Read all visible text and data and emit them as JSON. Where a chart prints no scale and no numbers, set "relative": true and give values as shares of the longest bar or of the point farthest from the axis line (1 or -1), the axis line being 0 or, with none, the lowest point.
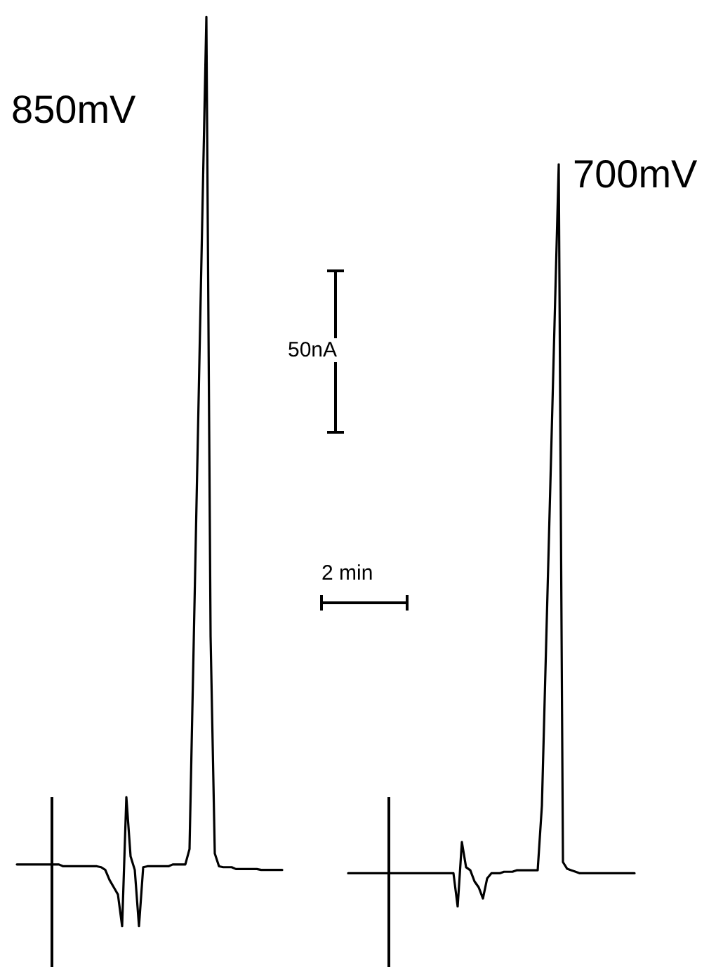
{
  "chart_data": [
    {
      "type": "line",
      "relative": true,
      "marker": "none",
      "line_style": "solid",
      "annotations": [
        "50nA",
        "2 min"
      ],
      "categories": [
        null,
        null,
        null,
        null,
        null,
        null,
        null,
        null,
        null,
        null,
        null,
        null,
        null,
        null,
        null,
        null,
        null,
        null,
        null,
        null,
        null,
        null,
        null,
        null,
        null,
        null,
        null,
        null,
        null,
        null,
        null,
        null,
        null,
        null,
        null,
        null,
        null,
        null,
        null,
        null,
        null,
        null,
        null,
        null,
        null,
        null,
        null,
        null,
        null,
        null,
        null,
        null,
        null,
        null,
        null,
        null,
        null,
        null,
        null,
        null,
        null,
        null,
        null,
        null
      ],
      "series": [
        {
          "name": "850mV",
          "color": "#000000",
          "values": [
            0.068,
            0.068,
            0.068,
            0.068,
            0.068,
            0.068,
            0.068,
            0.068,
            0.068,
            0.068,
            0.068,
            0.066,
            0.066,
            0.066,
            0.066,
            0.066,
            0.066,
            0.066,
            0.066,
            0.066,
            0.065,
            0.062,
            0.051,
            0.043,
            0.035,
            0,
            0.142,
            0.077,
            0.062,
            0,
            0.065,
            0.066,
            0.066,
            0.066,
            0.066,
            0.066,
            0.066,
            0.068,
            0.068,
            0.068,
            0.068,
            0.085,
            0.313,
            0.542,
            0.772,
            1,
            0.319,
            0.08,
            0.066,
            0.065,
            0.065,
            0.065,
            0.063,
            0.063,
            0.063,
            0.063,
            0.063,
            0.063,
            0.062,
            0.062,
            0.062,
            0.062,
            0.062,
            0.062
          ]
        }
      ]
    },
    {
      "type": "line",
      "relative": true,
      "marker": "none",
      "line_style": "solid",
      "categories": [
        null,
        null,
        null,
        null,
        null,
        null,
        null,
        null,
        null,
        null,
        null,
        null,
        null,
        null,
        null,
        null,
        null,
        null,
        null,
        null,
        null,
        null,
        null,
        null,
        null,
        null,
        null,
        null,
        null,
        null,
        null,
        null,
        null,
        null,
        null,
        null,
        null,
        null,
        null,
        null,
        null,
        null,
        null,
        null,
        null,
        null,
        null,
        null,
        null,
        null,
        null,
        null,
        null,
        null,
        null,
        null,
        null,
        null,
        null,
        null,
        null,
        null,
        null,
        null,
        null,
        null,
        null,
        null,
        null
      ],
      "series": [
        {
          "name": "700mV",
          "color": "#000000",
          "values": [
            0.045,
            0.045,
            0.045,
            0.045,
            0.045,
            0.045,
            0.045,
            0.045,
            0.045,
            0.045,
            0.045,
            0.045,
            0.045,
            0.045,
            0.045,
            0.045,
            0.045,
            0.045,
            0.045,
            0.045,
            0.045,
            0.045,
            0.045,
            0.045,
            0.045,
            0.045,
            0,
            0.087,
            0.053,
            0.049,
            0.034,
            0.026,
            0.011,
            0.038,
            0.045,
            0.045,
            0.045,
            0.047,
            0.047,
            0.047,
            0.049,
            0.049,
            0.049,
            0.049,
            0.049,
            0.049,
            0.136,
            0.352,
            0.567,
            0.785,
            1,
            0.06,
            0.051,
            0.049,
            0.047,
            0.045,
            0.045,
            0.045,
            0.045,
            0.045,
            0.045,
            0.045,
            0.045,
            0.045,
            0.045,
            0.045,
            0.045,
            0.045,
            0.045
          ]
        }
      ]
    }
  ]
}
